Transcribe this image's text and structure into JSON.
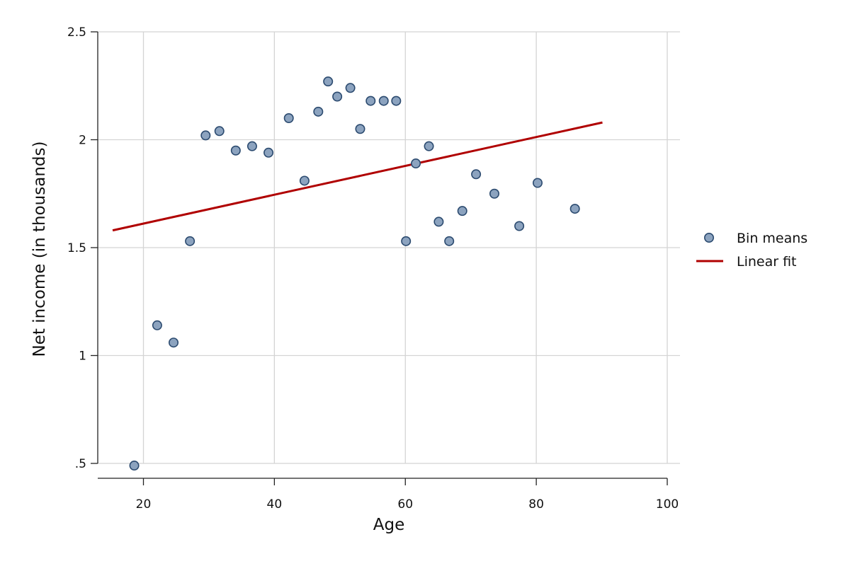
{
  "chart_data": {
    "type": "scatter",
    "title": "",
    "xlabel": "Age",
    "ylabel": "Net income (in thousands)",
    "xlim": [
      14,
      100
    ],
    "ylim": [
      0.43,
      2.5
    ],
    "x_ticks": [
      20,
      40,
      60,
      80,
      100
    ],
    "x_tick_labels": [
      "20",
      "40",
      "60",
      "80",
      "100"
    ],
    "y_ticks": [
      0.5,
      1,
      1.5,
      2,
      2.5
    ],
    "y_tick_labels": [
      ".5",
      "1",
      "1.5",
      "2",
      "2.5"
    ],
    "grid": true,
    "legend_position": "right",
    "series": [
      {
        "name": "Bin means",
        "kind": "scatter",
        "color": "#8ca3bf",
        "edge_color": "#2b4a6f",
        "points": [
          {
            "x": 18.6,
            "y": 0.49
          },
          {
            "x": 22.1,
            "y": 1.14
          },
          {
            "x": 24.6,
            "y": 1.06
          },
          {
            "x": 27.1,
            "y": 1.53
          },
          {
            "x": 29.5,
            "y": 2.02
          },
          {
            "x": 31.6,
            "y": 2.04
          },
          {
            "x": 34.1,
            "y": 1.95
          },
          {
            "x": 36.6,
            "y": 1.97
          },
          {
            "x": 39.1,
            "y": 1.94
          },
          {
            "x": 42.2,
            "y": 2.1
          },
          {
            "x": 44.6,
            "y": 1.81
          },
          {
            "x": 46.7,
            "y": 2.13
          },
          {
            "x": 48.2,
            "y": 2.27
          },
          {
            "x": 49.6,
            "y": 2.2
          },
          {
            "x": 51.6,
            "y": 2.24
          },
          {
            "x": 53.1,
            "y": 2.05
          },
          {
            "x": 54.7,
            "y": 2.18
          },
          {
            "x": 56.7,
            "y": 2.18
          },
          {
            "x": 58.6,
            "y": 2.18
          },
          {
            "x": 60.1,
            "y": 1.53
          },
          {
            "x": 61.6,
            "y": 1.89
          },
          {
            "x": 63.6,
            "y": 1.97
          },
          {
            "x": 65.1,
            "y": 1.62
          },
          {
            "x": 66.7,
            "y": 1.53
          },
          {
            "x": 68.7,
            "y": 1.67
          },
          {
            "x": 70.8,
            "y": 1.84
          },
          {
            "x": 73.6,
            "y": 1.75
          },
          {
            "x": 77.4,
            "y": 1.6
          },
          {
            "x": 80.2,
            "y": 1.8
          },
          {
            "x": 85.9,
            "y": 1.68
          }
        ]
      },
      {
        "name": "Linear fit",
        "kind": "line",
        "color": "#b00000",
        "points": [
          {
            "x": 15.3,
            "y": 1.58
          },
          {
            "x": 90.1,
            "y": 2.08
          }
        ]
      }
    ]
  }
}
